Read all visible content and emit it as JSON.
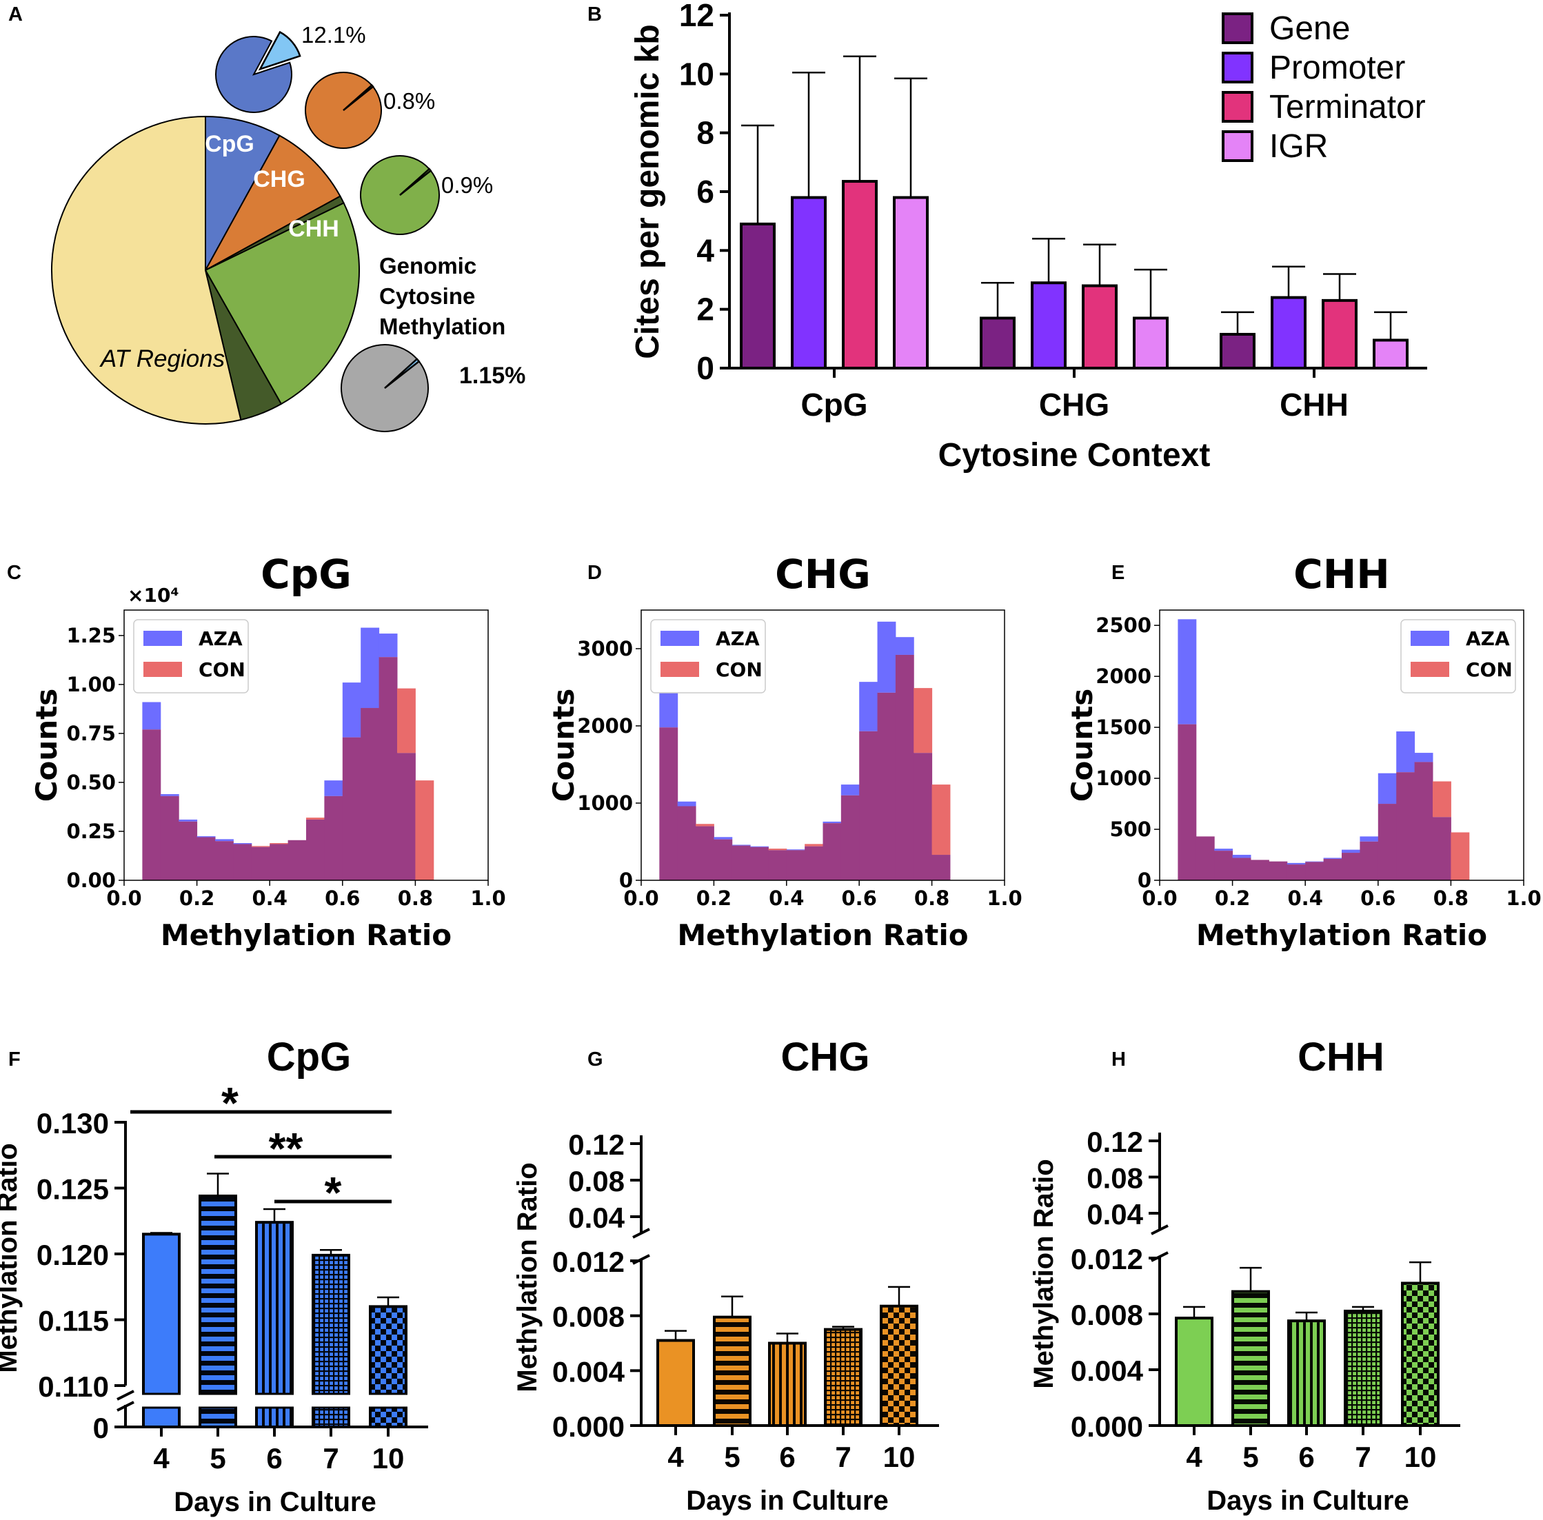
{
  "colors": {
    "gene": "#7b2283",
    "promoter": "#8133ff",
    "terminator": "#e2337c",
    "igr": "#e483f7",
    "pie_cpg": "#5a78c8",
    "pie_chg": "#d97c36",
    "pie_chh": "#80b04a",
    "pie_at": "#f5e19a",
    "pie_dark": "#445a29",
    "pie_grey": "#a8a8a8",
    "pie_light": "#82c6f4",
    "aza": "#6d6dff",
    "con": "#e96b6b",
    "overlap": "#9a3d84",
    "cpg_bar": "#3d7cfa",
    "chg_bar": "#ea9224",
    "chh_bar": "#7dcf53"
  },
  "chart_data": [
    {
      "panel": "A",
      "type": "pie",
      "slices": [
        {
          "label": "CpG",
          "value": 8,
          "color_key": "pie_cpg"
        },
        {
          "label": "CHG",
          "value": 9,
          "color_key": "pie_chg"
        },
        {
          "label": "",
          "value": 0.8,
          "color_key": "pie_dark"
        },
        {
          "label": "CHH",
          "value": 24,
          "color_key": "pie_chh"
        },
        {
          "label": "",
          "value": 4.5,
          "color_key": "pie_dark"
        },
        {
          "label": "AT Regions",
          "value": 53.7,
          "color_key": "pie_at"
        }
      ],
      "insets": [
        {
          "name": "cpg",
          "label": "12.1%",
          "value": 12.1,
          "color_key": "pie_cpg",
          "slice_color_key": "pie_light"
        },
        {
          "name": "chg",
          "label": "0.8%",
          "value": 0.8,
          "color_key": "pie_chg"
        },
        {
          "name": "chh",
          "label": "0.9%",
          "value": 0.9,
          "color_key": "pie_chh"
        },
        {
          "name": "total",
          "label": "1.15%",
          "value": 1.15,
          "color_key": "pie_grey",
          "slice_color_key": "pie_light"
        }
      ],
      "annotation": [
        "Genomic",
        "Cytosine",
        "Methylation"
      ]
    },
    {
      "panel": "B",
      "type": "bar",
      "categories": [
        "CpG",
        "CHG",
        "CHH"
      ],
      "series": [
        {
          "name": "Gene",
          "values": [
            4.9,
            1.7,
            1.15
          ],
          "errors": [
            3.35,
            1.2,
            0.75
          ]
        },
        {
          "name": "Promoter",
          "values": [
            5.8,
            2.9,
            2.4
          ],
          "errors": [
            4.25,
            1.5,
            1.05
          ]
        },
        {
          "name": "Terminator",
          "values": [
            6.35,
            2.8,
            2.3
          ],
          "errors": [
            4.25,
            1.4,
            0.9
          ]
        },
        {
          "name": "IGR",
          "values": [
            5.8,
            1.7,
            0.95
          ],
          "errors": [
            4.05,
            1.65,
            0.95
          ]
        }
      ],
      "xlabel": "Cytosine Context",
      "ylabel": "Cites per genomic kb",
      "ylim": [
        0,
        12
      ],
      "yticks": [
        "0",
        "2",
        "4",
        "6",
        "8",
        "10",
        "12"
      ]
    },
    {
      "panel": "C",
      "type": "histogram",
      "title": "CpG",
      "xlabel": "Methylation Ratio",
      "ylabel": "Counts",
      "multiplier": "×10⁴",
      "legend": [
        "AZA",
        "CON"
      ],
      "legend_position": "top-left",
      "xlim": [
        0,
        1
      ],
      "ylim": [
        0,
        1.38
      ],
      "yticks": [
        "0.00",
        "0.25",
        "0.50",
        "0.75",
        "1.00",
        "1.25"
      ],
      "xticks": [
        "0.0",
        "0.2",
        "0.4",
        "0.6",
        "0.8",
        "1.0"
      ],
      "bin_start": 0.05,
      "bin_width": 0.05,
      "aza": [
        0.91,
        0.44,
        0.31,
        0.225,
        0.21,
        0.19,
        0.17,
        0.185,
        0.205,
        0.31,
        0.51,
        1.01,
        1.29,
        1.26,
        0.65,
        0
      ],
      "con": [
        0.77,
        0.43,
        0.3,
        0.22,
        0.2,
        0.185,
        0.175,
        0.19,
        0.205,
        0.32,
        0.43,
        0.73,
        0.88,
        1.14,
        0.98,
        0.51
      ]
    },
    {
      "panel": "D",
      "type": "histogram",
      "title": "CHG",
      "xlabel": "Methylation Ratio",
      "ylabel": "Counts",
      "legend": [
        "AZA",
        "CON"
      ],
      "legend_position": "top-left",
      "xlim": [
        0,
        1
      ],
      "ylim": [
        0,
        3500
      ],
      "yticks": [
        "0",
        "1000",
        "2000",
        "3000"
      ],
      "xticks": [
        "0.0",
        "0.2",
        "0.4",
        "0.6",
        "0.8",
        "1.0"
      ],
      "bin_start": 0.05,
      "bin_width": 0.05,
      "aza": [
        3000,
        1020,
        700,
        560,
        460,
        440,
        390,
        400,
        440,
        760,
        1240,
        2570,
        3350,
        3150,
        1650,
        330
      ],
      "con": [
        1980,
        960,
        730,
        530,
        450,
        430,
        410,
        390,
        470,
        740,
        1100,
        1930,
        2430,
        2920,
        2490,
        1240
      ]
    },
    {
      "panel": "E",
      "type": "histogram",
      "title": "CHH",
      "xlabel": "Methylation Ratio",
      "ylabel": "Counts",
      "legend": [
        "AZA",
        "CON"
      ],
      "legend_position": "top-right",
      "xlim": [
        0,
        1
      ],
      "ylim": [
        0,
        2650
      ],
      "yticks": [
        "0",
        "500",
        "1000",
        "1500",
        "2000",
        "2500"
      ],
      "xticks": [
        "0.0",
        "0.2",
        "0.4",
        "0.6",
        "0.8",
        "1.0"
      ],
      "bin_start": 0.05,
      "bin_width": 0.05,
      "aza": [
        2560,
        430,
        310,
        250,
        200,
        185,
        170,
        185,
        220,
        300,
        430,
        1050,
        1460,
        1250,
        620,
        0
      ],
      "con": [
        1530,
        430,
        290,
        220,
        200,
        185,
        155,
        180,
        210,
        270,
        380,
        750,
        1060,
        1160,
        970,
        470
      ]
    },
    {
      "panel": "F",
      "type": "bar",
      "title": "CpG",
      "xlabel": "Days in Culture",
      "ylabel": "Methylation Ratio",
      "categories": [
        "4",
        "5",
        "6",
        "7",
        "10"
      ],
      "values": [
        0.1215,
        0.1244,
        0.1224,
        0.1199,
        0.116
      ],
      "errors": [
        0.0001,
        0.0017,
        0.001,
        0.0004,
        0.0007
      ],
      "ylim": [
        0.11,
        0.13
      ],
      "yticks": [
        "0.110",
        "0.115",
        "0.120",
        "0.125",
        "0.130"
      ],
      "ybreak_low": "0",
      "patterns": [
        "solid",
        "hlines",
        "vlines",
        "grid",
        "checker"
      ],
      "significance": [
        {
          "from": "4",
          "to": "10",
          "label": "*"
        },
        {
          "from": "5",
          "to": "10",
          "label": "**"
        },
        {
          "from": "6",
          "to": "10",
          "label": "*"
        }
      ]
    },
    {
      "panel": "G",
      "type": "bar",
      "title": "CHG",
      "xlabel": "Days in Culture",
      "ylabel": "Methylation Ratio",
      "categories": [
        "4",
        "5",
        "6",
        "7",
        "10"
      ],
      "values": [
        0.0062,
        0.0079,
        0.006,
        0.007,
        0.0087
      ],
      "errors": [
        0.0007,
        0.0015,
        0.0007,
        0.0002,
        0.0014
      ],
      "ylim": [
        0,
        0.012
      ],
      "yticks": [
        "0.000",
        "0.004",
        "0.008",
        "0.012"
      ],
      "upper_ylim": [
        0.04,
        0.12
      ],
      "upper_yticks": [
        "0.04",
        "0.08",
        "0.12"
      ],
      "patterns": [
        "solid",
        "hlines",
        "vlines",
        "grid",
        "checker"
      ]
    },
    {
      "panel": "H",
      "type": "bar",
      "title": "CHH",
      "xlabel": "Days in Culture",
      "ylabel": "Methylation Ratio",
      "categories": [
        "4",
        "5",
        "6",
        "7",
        "10"
      ],
      "values": [
        0.0077,
        0.0096,
        0.0075,
        0.0082,
        0.0102
      ],
      "errors": [
        0.0008,
        0.0017,
        0.0006,
        0.0003,
        0.0015
      ],
      "ylim": [
        0,
        0.012
      ],
      "yticks": [
        "0.000",
        "0.004",
        "0.008",
        "0.012"
      ],
      "upper_ylim": [
        0.04,
        0.12
      ],
      "upper_yticks": [
        "0.04",
        "0.08",
        "0.12"
      ],
      "patterns": [
        "solid",
        "hlines",
        "vlines",
        "grid",
        "checker"
      ]
    }
  ]
}
